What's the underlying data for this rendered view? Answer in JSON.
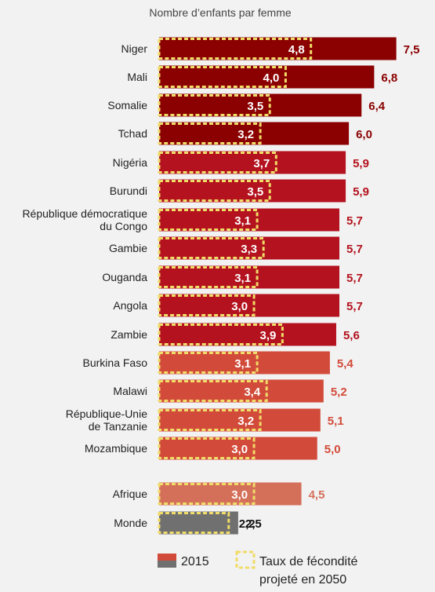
{
  "chart_data": {
    "type": "bar",
    "title": "Nombre d’enfants par femme",
    "xlabel": "",
    "ylabel": "",
    "xlim": [
      0,
      8
    ],
    "categories": [
      "Niger",
      "Mali",
      "Somalie",
      "Tchad",
      "Nigéria",
      "Burundi",
      "République démocratique du Congo",
      "Gambie",
      "Ouganda",
      "Angola",
      "Zambie",
      "Burkina Faso",
      "Malawi",
      "République-Unie de Tanzanie",
      "Mozambique",
      "Afrique",
      "Monde"
    ],
    "category_lines": [
      [
        "Niger"
      ],
      [
        "Mali"
      ],
      [
        "Somalie"
      ],
      [
        "Tchad"
      ],
      [
        "Nigéria"
      ],
      [
        "Burundi"
      ],
      [
        "République démocratique",
        "du Congo"
      ],
      [
        "Gambie"
      ],
      [
        "Ouganda"
      ],
      [
        "Angola"
      ],
      [
        "Zambie"
      ],
      [
        "Burkina Faso"
      ],
      [
        "Malawi"
      ],
      [
        "République-Unie",
        "de Tanzanie"
      ],
      [
        "Mozambique"
      ],
      [
        "Afrique"
      ],
      [
        "Monde"
      ]
    ],
    "series": [
      {
        "name": "2015",
        "values": [
          7.5,
          6.8,
          6.4,
          6.0,
          5.9,
          5.9,
          5.7,
          5.7,
          5.7,
          5.7,
          5.6,
          5.4,
          5.2,
          5.1,
          5.0,
          4.5,
          2.5
        ],
        "labels": [
          "7,5",
          "6,8",
          "6,4",
          "6,0",
          "5,9",
          "5,9",
          "5,7",
          "5,7",
          "5,7",
          "5,7",
          "5,6",
          "5,4",
          "5,2",
          "5,1",
          "5,0",
          "4,5",
          "2,5"
        ]
      },
      {
        "name": "Taux de fécondité projeté en 2050",
        "values": [
          4.8,
          4.0,
          3.5,
          3.2,
          3.7,
          3.5,
          3.1,
          3.3,
          3.1,
          3.0,
          3.9,
          3.1,
          3.4,
          3.2,
          3.0,
          3.0,
          2.2
        ],
        "labels": [
          "4,8",
          "4,0",
          "3,5",
          "3,2",
          "3,7",
          "3,5",
          "3,1",
          "3,3",
          "3,1",
          "3,0",
          "3,9",
          "3,1",
          "3,4",
          "3,2",
          "3,0",
          "3,0",
          "2,2"
        ]
      }
    ],
    "bar_colors": [
      "#8b0000",
      "#8b0000",
      "#8b0000",
      "#8b0000",
      "#b3121e",
      "#b3121e",
      "#b3121e",
      "#b3121e",
      "#b3121e",
      "#b3121e",
      "#b3121e",
      "#d24b3a",
      "#d24b3a",
      "#d24b3a",
      "#d24b3a",
      "#d4705a",
      "#707070"
    ],
    "projection_box_color": "#f0dc68",
    "legend": {
      "items": [
        {
          "label": "2015",
          "colors": [
            "#d24b3a",
            "#707070"
          ]
        },
        {
          "label_lines": [
            "Taux de fécondité",
            "projeté en 2050"
          ],
          "style": "dashed-box"
        }
      ],
      "placement": "bottom"
    }
  }
}
